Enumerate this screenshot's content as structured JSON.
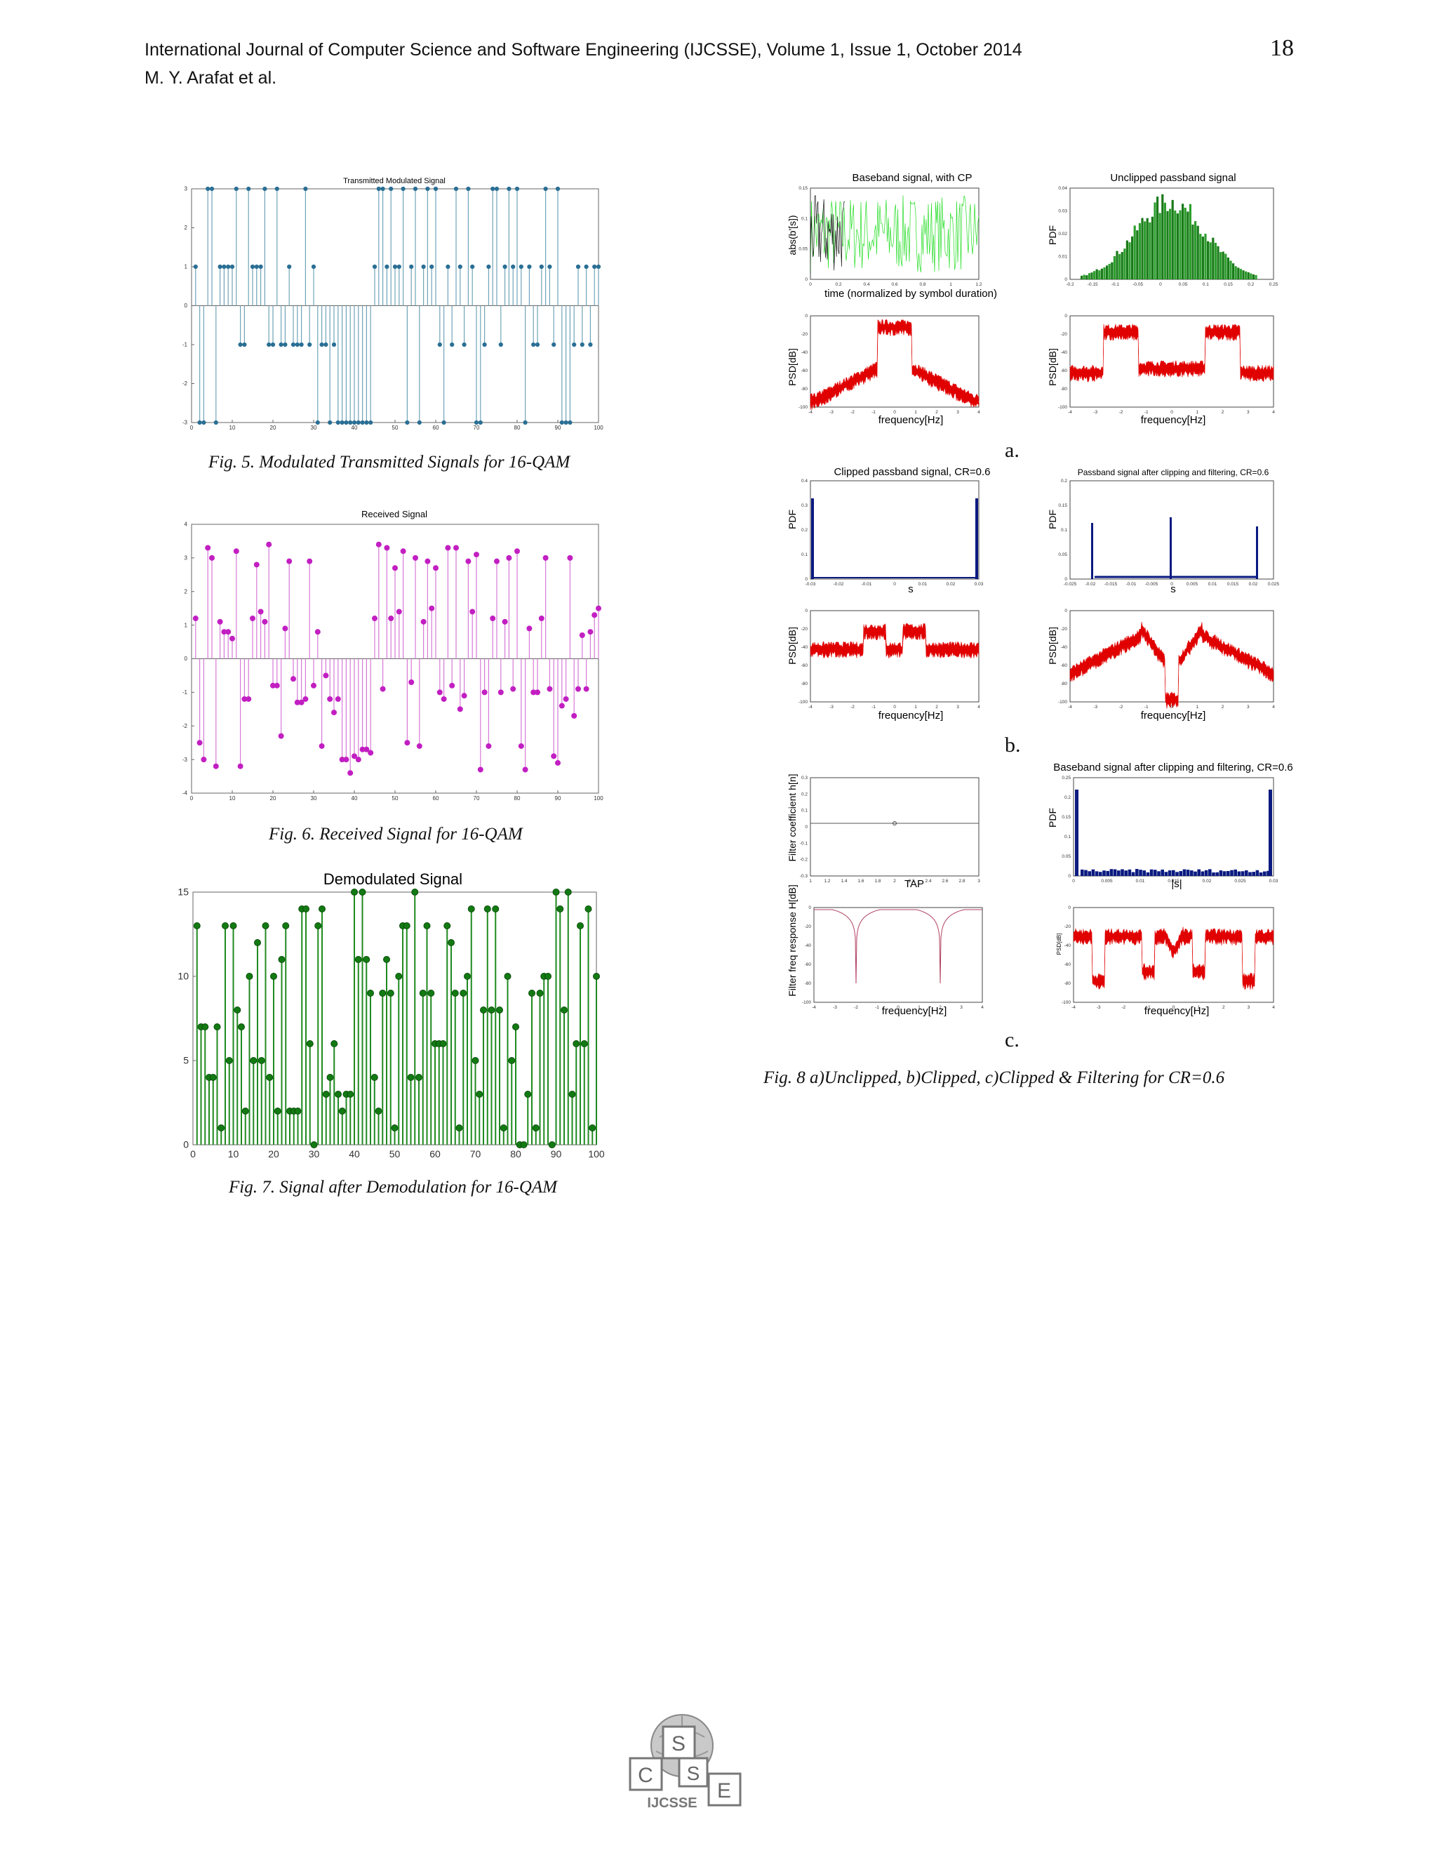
{
  "header": {
    "journal": "International Journal of Computer Science and Software Engineering (IJCSSE), Volume 1, Issue 1, October 2014",
    "authors": "M. Y. Arafat et al.",
    "page_number": "18"
  },
  "captions": {
    "fig5": "Fig. 5. Modulated Transmitted Signals  for 16-QAM",
    "fig6": "Fig. 6. Received Signal for 16-QAM",
    "fig7": "Fig. 7. Signal after Demodulation for 16-QAM",
    "fig8": "Fig. 8  a)Unclipped, b)Clipped, c)Clipped & Filtering for  CR=0.6",
    "sub_a": "a.",
    "sub_b": "b.",
    "sub_c": "c."
  },
  "logo": {
    "text": "IJCSSE",
    "letters": [
      "C",
      "S",
      "S",
      "E"
    ]
  },
  "fig5_panel": {
    "title": "Transmitted Modulated Signal"
  },
  "fig6_panel": {
    "title": "Received Signal"
  },
  "fig8_panels": {
    "a_time_title": "Baseband signal, with CP",
    "a_time_ylabel": "abs(b'[s])",
    "a_time_xlabel": "time (normalized by symbol duration)",
    "a_pdf_title": "Unclipped passband signal",
    "a_pdf_ylabel": "PDF",
    "psd_ylabel": "PSD[dB]",
    "freq_xlabel": "frequency[Hz]",
    "b_pdf1_title": "Clipped passband signal, CR=0.6",
    "b_pdf2_title": "Passband signal after clipping and filtering, CR=0.6",
    "pdf_ylabel": "PDF",
    "s_xlabel": "s",
    "c_filter_ylabel": "Filter coefficient h[n]",
    "c_tap_xlabel": "TAP",
    "c_resp_ylabel": "Filter freq response H[dB]",
    "c_pdf_title": "Baseband signal after clipping and filtering, CR=0.6",
    "abs_s_xlabel": "|s|"
  },
  "chart_data": [
    {
      "type": "scatter",
      "title": "Transmitted Modulated Signal",
      "xlim": [
        0,
        100
      ],
      "ylim": [
        -3,
        3
      ],
      "x_ticks": [
        0,
        10,
        20,
        30,
        40,
        50,
        60,
        70,
        80,
        90,
        100
      ],
      "y_ticks": [
        -3,
        -2,
        -1,
        0,
        1,
        2,
        3
      ],
      "x": [
        1,
        2,
        3,
        4,
        5,
        6,
        7,
        8,
        9,
        10,
        11,
        12,
        13,
        14,
        15,
        16,
        17,
        18,
        19,
        20,
        21,
        22,
        23,
        24,
        25,
        26,
        27,
        28,
        29,
        30,
        31,
        32,
        33,
        34,
        35,
        36,
        37,
        38,
        39,
        40,
        41,
        42,
        43,
        44,
        45,
        46,
        47,
        48,
        49,
        50,
        51,
        52,
        53,
        54,
        55,
        56,
        57,
        58,
        59,
        60,
        61,
        62,
        63,
        64,
        65,
        66,
        67,
        68,
        69,
        70,
        71,
        72,
        73,
        74,
        75,
        76,
        77,
        78,
        79,
        80,
        81,
        82,
        83,
        84,
        85,
        86,
        87,
        88,
        89,
        90,
        91,
        92,
        93,
        94,
        95,
        96,
        97,
        98,
        99,
        100
      ],
      "values": [
        1,
        -3,
        -3,
        3,
        3,
        -3,
        1,
        1,
        1,
        1,
        3,
        -1,
        -1,
        3,
        1,
        1,
        1,
        3,
        -1,
        -1,
        3,
        -1,
        -1,
        1,
        -1,
        -1,
        -1,
        3,
        -1,
        1,
        -3,
        -1,
        -1,
        -3,
        -1,
        -3,
        -3,
        -3,
        -3,
        -3,
        -3,
        -3,
        -3,
        -3,
        1,
        3,
        3,
        1,
        3,
        1,
        1,
        3,
        -3,
        1,
        3,
        -3,
        1,
        3,
        1,
        3,
        -1,
        -3,
        1,
        -1,
        3,
        1,
        -1,
        3,
        1,
        -3,
        -3,
        -1,
        1,
        3,
        3,
        -1,
        1,
        3,
        1,
        3,
        1,
        -3,
        1,
        -1,
        -1,
        1,
        3,
        1,
        -1,
        3,
        -3,
        -3,
        -3,
        -1,
        1,
        -1,
        1,
        -1,
        1,
        1
      ]
    },
    {
      "type": "scatter",
      "title": "Received Signal",
      "xlim": [
        0,
        100
      ],
      "ylim": [
        -4,
        4
      ],
      "x_ticks": [
        0,
        10,
        20,
        30,
        40,
        50,
        60,
        70,
        80,
        90,
        100
      ],
      "y_ticks": [
        -4,
        -3,
        -2,
        -1,
        0,
        1,
        2,
        3,
        4
      ],
      "x": [
        1,
        2,
        3,
        4,
        5,
        6,
        7,
        8,
        9,
        10,
        11,
        12,
        13,
        14,
        15,
        16,
        17,
        18,
        19,
        20,
        21,
        22,
        23,
        24,
        25,
        26,
        27,
        28,
        29,
        30,
        31,
        32,
        33,
        34,
        35,
        36,
        37,
        38,
        39,
        40,
        41,
        42,
        43,
        44,
        45,
        46,
        47,
        48,
        49,
        50,
        51,
        52,
        53,
        54,
        55,
        56,
        57,
        58,
        59,
        60,
        61,
        62,
        63,
        64,
        65,
        66,
        67,
        68,
        69,
        70,
        71,
        72,
        73,
        74,
        75,
        76,
        77,
        78,
        79,
        80,
        81,
        82,
        83,
        84,
        85,
        86,
        87,
        88,
        89,
        90,
        91,
        92,
        93,
        94,
        95,
        96,
        97,
        98,
        99,
        100
      ],
      "values": [
        1.2,
        -2.5,
        -3.0,
        3.3,
        3.0,
        -3.2,
        1.1,
        0.8,
        0.8,
        0.6,
        3.2,
        -3.2,
        -1.2,
        -1.2,
        1.2,
        2.8,
        1.4,
        1.1,
        3.4,
        -0.8,
        -0.8,
        -2.3,
        0.9,
        2.9,
        -0.6,
        -1.3,
        -1.3,
        -1.2,
        2.9,
        -0.8,
        0.8,
        -2.6,
        -0.5,
        -1.2,
        -1.6,
        -1.2,
        -3.0,
        -3.0,
        -3.4,
        -2.9,
        -3.0,
        -2.7,
        -2.7,
        -2.8,
        1.2,
        3.4,
        -0.9,
        3.3,
        1.2,
        2.7,
        1.4,
        3.2,
        -2.5,
        -0.7,
        3.0,
        -2.6,
        1.1,
        2.9,
        1.5,
        2.7,
        -1.0,
        -1.2,
        3.3,
        -0.8,
        3.3,
        -1.5,
        -1.1,
        2.9,
        1.4,
        3.1,
        -3.3,
        -1.0,
        -2.6,
        1.2,
        2.9,
        -1.0,
        1.1,
        3.0,
        -0.9,
        3.2,
        -2.6,
        -3.3,
        0.9,
        -1.0,
        -1.0,
        1.2,
        3.0,
        -0.9,
        -2.9,
        -3.1,
        -1.4,
        -1.2,
        3.0,
        -1.7,
        -0.9,
        0.7,
        -0.9,
        0.8,
        1.3,
        1.5
      ]
    },
    {
      "type": "scatter",
      "title": "Demodulated Signal",
      "xlim": [
        0,
        100
      ],
      "ylim": [
        0,
        15
      ],
      "x_ticks": [
        0,
        10,
        20,
        30,
        40,
        50,
        60,
        70,
        80,
        90,
        100
      ],
      "y_ticks": [
        0,
        5,
        10,
        15
      ],
      "x": [
        1,
        2,
        3,
        4,
        5,
        6,
        7,
        8,
        9,
        10,
        11,
        12,
        13,
        14,
        15,
        16,
        17,
        18,
        19,
        20,
        21,
        22,
        23,
        24,
        25,
        26,
        27,
        28,
        29,
        30,
        31,
        32,
        33,
        34,
        35,
        36,
        37,
        38,
        39,
        40,
        41,
        42,
        43,
        44,
        45,
        46,
        47,
        48,
        49,
        50,
        51,
        52,
        53,
        54,
        55,
        56,
        57,
        58,
        59,
        60,
        61,
        62,
        63,
        64,
        65,
        66,
        67,
        68,
        69,
        70,
        71,
        72,
        73,
        74,
        75,
        76,
        77,
        78,
        79,
        80,
        81,
        82,
        83,
        84,
        85,
        86,
        87,
        88,
        89,
        90,
        91,
        92,
        93,
        94,
        95,
        96,
        97,
        98,
        99,
        100
      ],
      "values": [
        13,
        7,
        7,
        4,
        4,
        7,
        1,
        13,
        5,
        13,
        8,
        7,
        2,
        10,
        5,
        12,
        5,
        13,
        4,
        10,
        2,
        11,
        13,
        2,
        2,
        2,
        14,
        14,
        6,
        0,
        13,
        14,
        3,
        4,
        6,
        3,
        2,
        3,
        3,
        15,
        11,
        15,
        11,
        9,
        4,
        2,
        9,
        11,
        9,
        1,
        10,
        13,
        13,
        4,
        15,
        4,
        9,
        13,
        9,
        6,
        6,
        6,
        13,
        12,
        9,
        1,
        9,
        10,
        14,
        5,
        3,
        8,
        14,
        8,
        14,
        8,
        1,
        10,
        5,
        7,
        0,
        0,
        3,
        9,
        1,
        9,
        10,
        10,
        0,
        15,
        14,
        8,
        15,
        3,
        6,
        13,
        6,
        14,
        1,
        10
      ]
    }
  ]
}
